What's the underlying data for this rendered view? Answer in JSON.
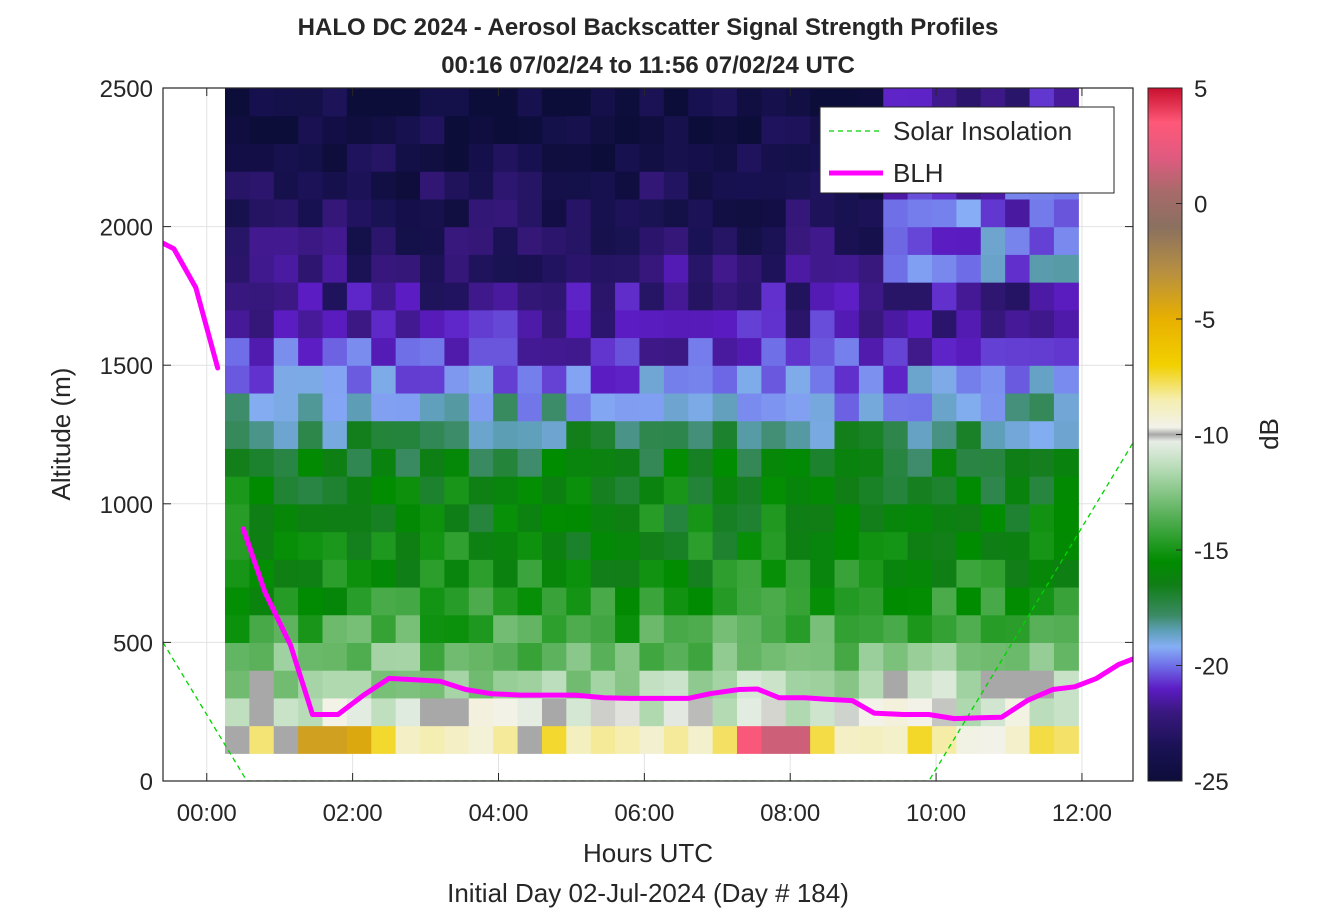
{
  "chart_data": {
    "type": "heatmap",
    "title_line1": "HALO DC 2024 - Aerosol Backscatter Signal Strength Profiles",
    "title_line2": "00:16 07/02/24 to 11:56 07/02/24  UTC",
    "xlabel": "Hours UTC",
    "ylabel": "Altitude (m)",
    "subtitle": "Initial Day 02-Jul-2024 (Day # 184)",
    "xlim_hours": [
      -0.6,
      12.7
    ],
    "ylim_m": [
      0,
      2500
    ],
    "x_ticks": [
      {
        "value": 0,
        "label": "00:00"
      },
      {
        "value": 2,
        "label": "02:00"
      },
      {
        "value": 4,
        "label": "04:00"
      },
      {
        "value": 6,
        "label": "06:00"
      },
      {
        "value": 8,
        "label": "08:00"
      },
      {
        "value": 10,
        "label": "10:00"
      },
      {
        "value": 12,
        "label": "12:00"
      }
    ],
    "y_ticks": [
      {
        "value": 0,
        "label": "0"
      },
      {
        "value": 500,
        "label": "500"
      },
      {
        "value": 1000,
        "label": "1000"
      },
      {
        "value": 1500,
        "label": "1500"
      },
      {
        "value": 2000,
        "label": "2000"
      },
      {
        "value": 2500,
        "label": "2500"
      }
    ],
    "grid": true,
    "legend_position": "top-right",
    "colorbar": {
      "label": "dB",
      "range": [
        -25,
        5
      ],
      "ticks": [
        {
          "value": 5,
          "label": "5"
        },
        {
          "value": 0,
          "label": "0"
        },
        {
          "value": -5,
          "label": "-5"
        },
        {
          "value": -10,
          "label": "-10"
        },
        {
          "value": -15,
          "label": "-15"
        },
        {
          "value": -20,
          "label": "-20"
        },
        {
          "value": -25,
          "label": "-25"
        }
      ],
      "stops": [
        {
          "value": -25,
          "color": "#0d0d3a"
        },
        {
          "value": -23.5,
          "color": "#1a1255"
        },
        {
          "value": -22,
          "color": "#3a1880"
        },
        {
          "value": -21,
          "color": "#5c1cc4"
        },
        {
          "value": -20,
          "color": "#6f6fe8"
        },
        {
          "value": -19.2,
          "color": "#86aef5"
        },
        {
          "value": -18.5,
          "color": "#5e9fb8"
        },
        {
          "value": -17.8,
          "color": "#3a8a62"
        },
        {
          "value": -16.5,
          "color": "#107e16"
        },
        {
          "value": -15.5,
          "color": "#008c00"
        },
        {
          "value": -13.5,
          "color": "#58b058"
        },
        {
          "value": -11.5,
          "color": "#b5dbb5"
        },
        {
          "value": -10.3,
          "color": "#e8eee6"
        },
        {
          "value": -10.0,
          "color": "#a8a8a8"
        },
        {
          "value": -9.7,
          "color": "#f2f2ea"
        },
        {
          "value": -8.5,
          "color": "#f5eeb0"
        },
        {
          "value": -7.0,
          "color": "#f2d000"
        },
        {
          "value": -5.0,
          "color": "#e8b000"
        },
        {
          "value": -3.0,
          "color": "#b89040"
        },
        {
          "value": -1.0,
          "color": "#8a7060"
        },
        {
          "value": 0.5,
          "color": "#a86a6a"
        },
        {
          "value": 2.0,
          "color": "#e05a80"
        },
        {
          "value": 3.5,
          "color": "#ff5878"
        },
        {
          "value": 5.0,
          "color": "#c8102e"
        }
      ]
    },
    "heatmap": {
      "x_start_hours": 0.25,
      "x_end_hours": 11.95,
      "n_time_bins": 35,
      "y_start_m": 100,
      "y_end_m": 2500,
      "n_alt_bins": 24,
      "alt_profile_dB": [
        [
          100,
          -6.5
        ],
        [
          150,
          -8.5
        ],
        [
          200,
          -9.5
        ],
        [
          250,
          -10.5
        ],
        [
          300,
          -11.0
        ],
        [
          400,
          -12.5
        ],
        [
          500,
          -13.5
        ],
        [
          600,
          -14.5
        ],
        [
          700,
          -15.2
        ],
        [
          800,
          -15.6
        ],
        [
          900,
          -15.8
        ],
        [
          1000,
          -16.0
        ],
        [
          1100,
          -16.3
        ],
        [
          1200,
          -17.2
        ],
        [
          1300,
          -18.5
        ],
        [
          1400,
          -19.3
        ],
        [
          1500,
          -20.5
        ],
        [
          1600,
          -21.3
        ],
        [
          1700,
          -21.8
        ],
        [
          1800,
          -22.3
        ],
        [
          1900,
          -22.8
        ],
        [
          2000,
          -23.2
        ],
        [
          2100,
          -23.5
        ],
        [
          2200,
          -23.8
        ],
        [
          2300,
          -24.2
        ],
        [
          2400,
          -24.5
        ],
        [
          2500,
          -24.8
        ]
      ],
      "late_hour_lift": {
        "from_hours": 9.0,
        "above_m": 1750,
        "dB": 3.0
      },
      "hot_cells": [
        {
          "hour": 7.35,
          "alt_m": 120,
          "dB": 3.2
        },
        {
          "hour": 7.7,
          "alt_m": 120,
          "dB": 1.5
        },
        {
          "hour": 8.0,
          "alt_m": 120,
          "dB": 1.5
        },
        {
          "hour": 1.3,
          "alt_m": 120,
          "dB": -4.0
        },
        {
          "hour": 1.65,
          "alt_m": 120,
          "dB": -4.0
        },
        {
          "hour": 2.0,
          "alt_m": 120,
          "dB": -4.5
        }
      ],
      "gray_cells": [
        {
          "hour": 0.3,
          "alt_m": 120
        },
        {
          "hour": 0.6,
          "alt_m": 220
        },
        {
          "hour": 0.6,
          "alt_m": 320
        },
        {
          "hour": 0.95,
          "alt_m": 170
        },
        {
          "hour": 3.0,
          "alt_m": 270
        },
        {
          "hour": 3.35,
          "alt_m": 270
        },
        {
          "hour": 4.35,
          "alt_m": 120
        },
        {
          "hour": 4.7,
          "alt_m": 220
        },
        {
          "hour": 9.35,
          "alt_m": 320
        },
        {
          "hour": 10.7,
          "alt_m": 370
        },
        {
          "hour": 11.05,
          "alt_m": 370
        },
        {
          "hour": 11.4,
          "alt_m": 370
        }
      ]
    },
    "series": [
      {
        "name": "Solar Insolation",
        "style": "dashed",
        "color": "#00d400",
        "segments": [
          [
            [
              -0.6,
              500
            ],
            [
              0.55,
              0
            ],
            [
              9.9,
              0
            ],
            [
              12.7,
              1220
            ]
          ]
        ]
      },
      {
        "name": "BLH",
        "style": "solid",
        "color": "#ff00ff",
        "segments": [
          [
            [
              -0.6,
              1940
            ],
            [
              -0.45,
              1920
            ],
            [
              -0.15,
              1780
            ],
            [
              0.15,
              1490
            ]
          ],
          [
            [
              0.5,
              910
            ],
            [
              0.8,
              680
            ],
            [
              1.15,
              490
            ],
            [
              1.45,
              240
            ],
            [
              1.8,
              240
            ],
            [
              2.15,
              310
            ],
            [
              2.5,
              370
            ],
            [
              2.85,
              365
            ],
            [
              3.2,
              360
            ],
            [
              3.55,
              330
            ],
            [
              3.9,
              315
            ],
            [
              4.3,
              310
            ],
            [
              4.7,
              310
            ],
            [
              5.05,
              310
            ],
            [
              5.45,
              300
            ],
            [
              5.8,
              298
            ],
            [
              6.2,
              298
            ],
            [
              6.6,
              298
            ],
            [
              6.9,
              315
            ],
            [
              7.3,
              330
            ],
            [
              7.55,
              332
            ],
            [
              7.85,
              300
            ],
            [
              8.2,
              300
            ],
            [
              8.5,
              295
            ],
            [
              8.85,
              290
            ],
            [
              9.15,
              245
            ],
            [
              9.55,
              240
            ],
            [
              9.9,
              240
            ],
            [
              10.25,
              225
            ],
            [
              10.6,
              228
            ],
            [
              10.9,
              230
            ],
            [
              11.25,
              290
            ],
            [
              11.6,
              330
            ],
            [
              11.9,
              340
            ],
            [
              12.2,
              370
            ],
            [
              12.5,
              420
            ],
            [
              12.7,
              440
            ]
          ]
        ]
      }
    ]
  }
}
